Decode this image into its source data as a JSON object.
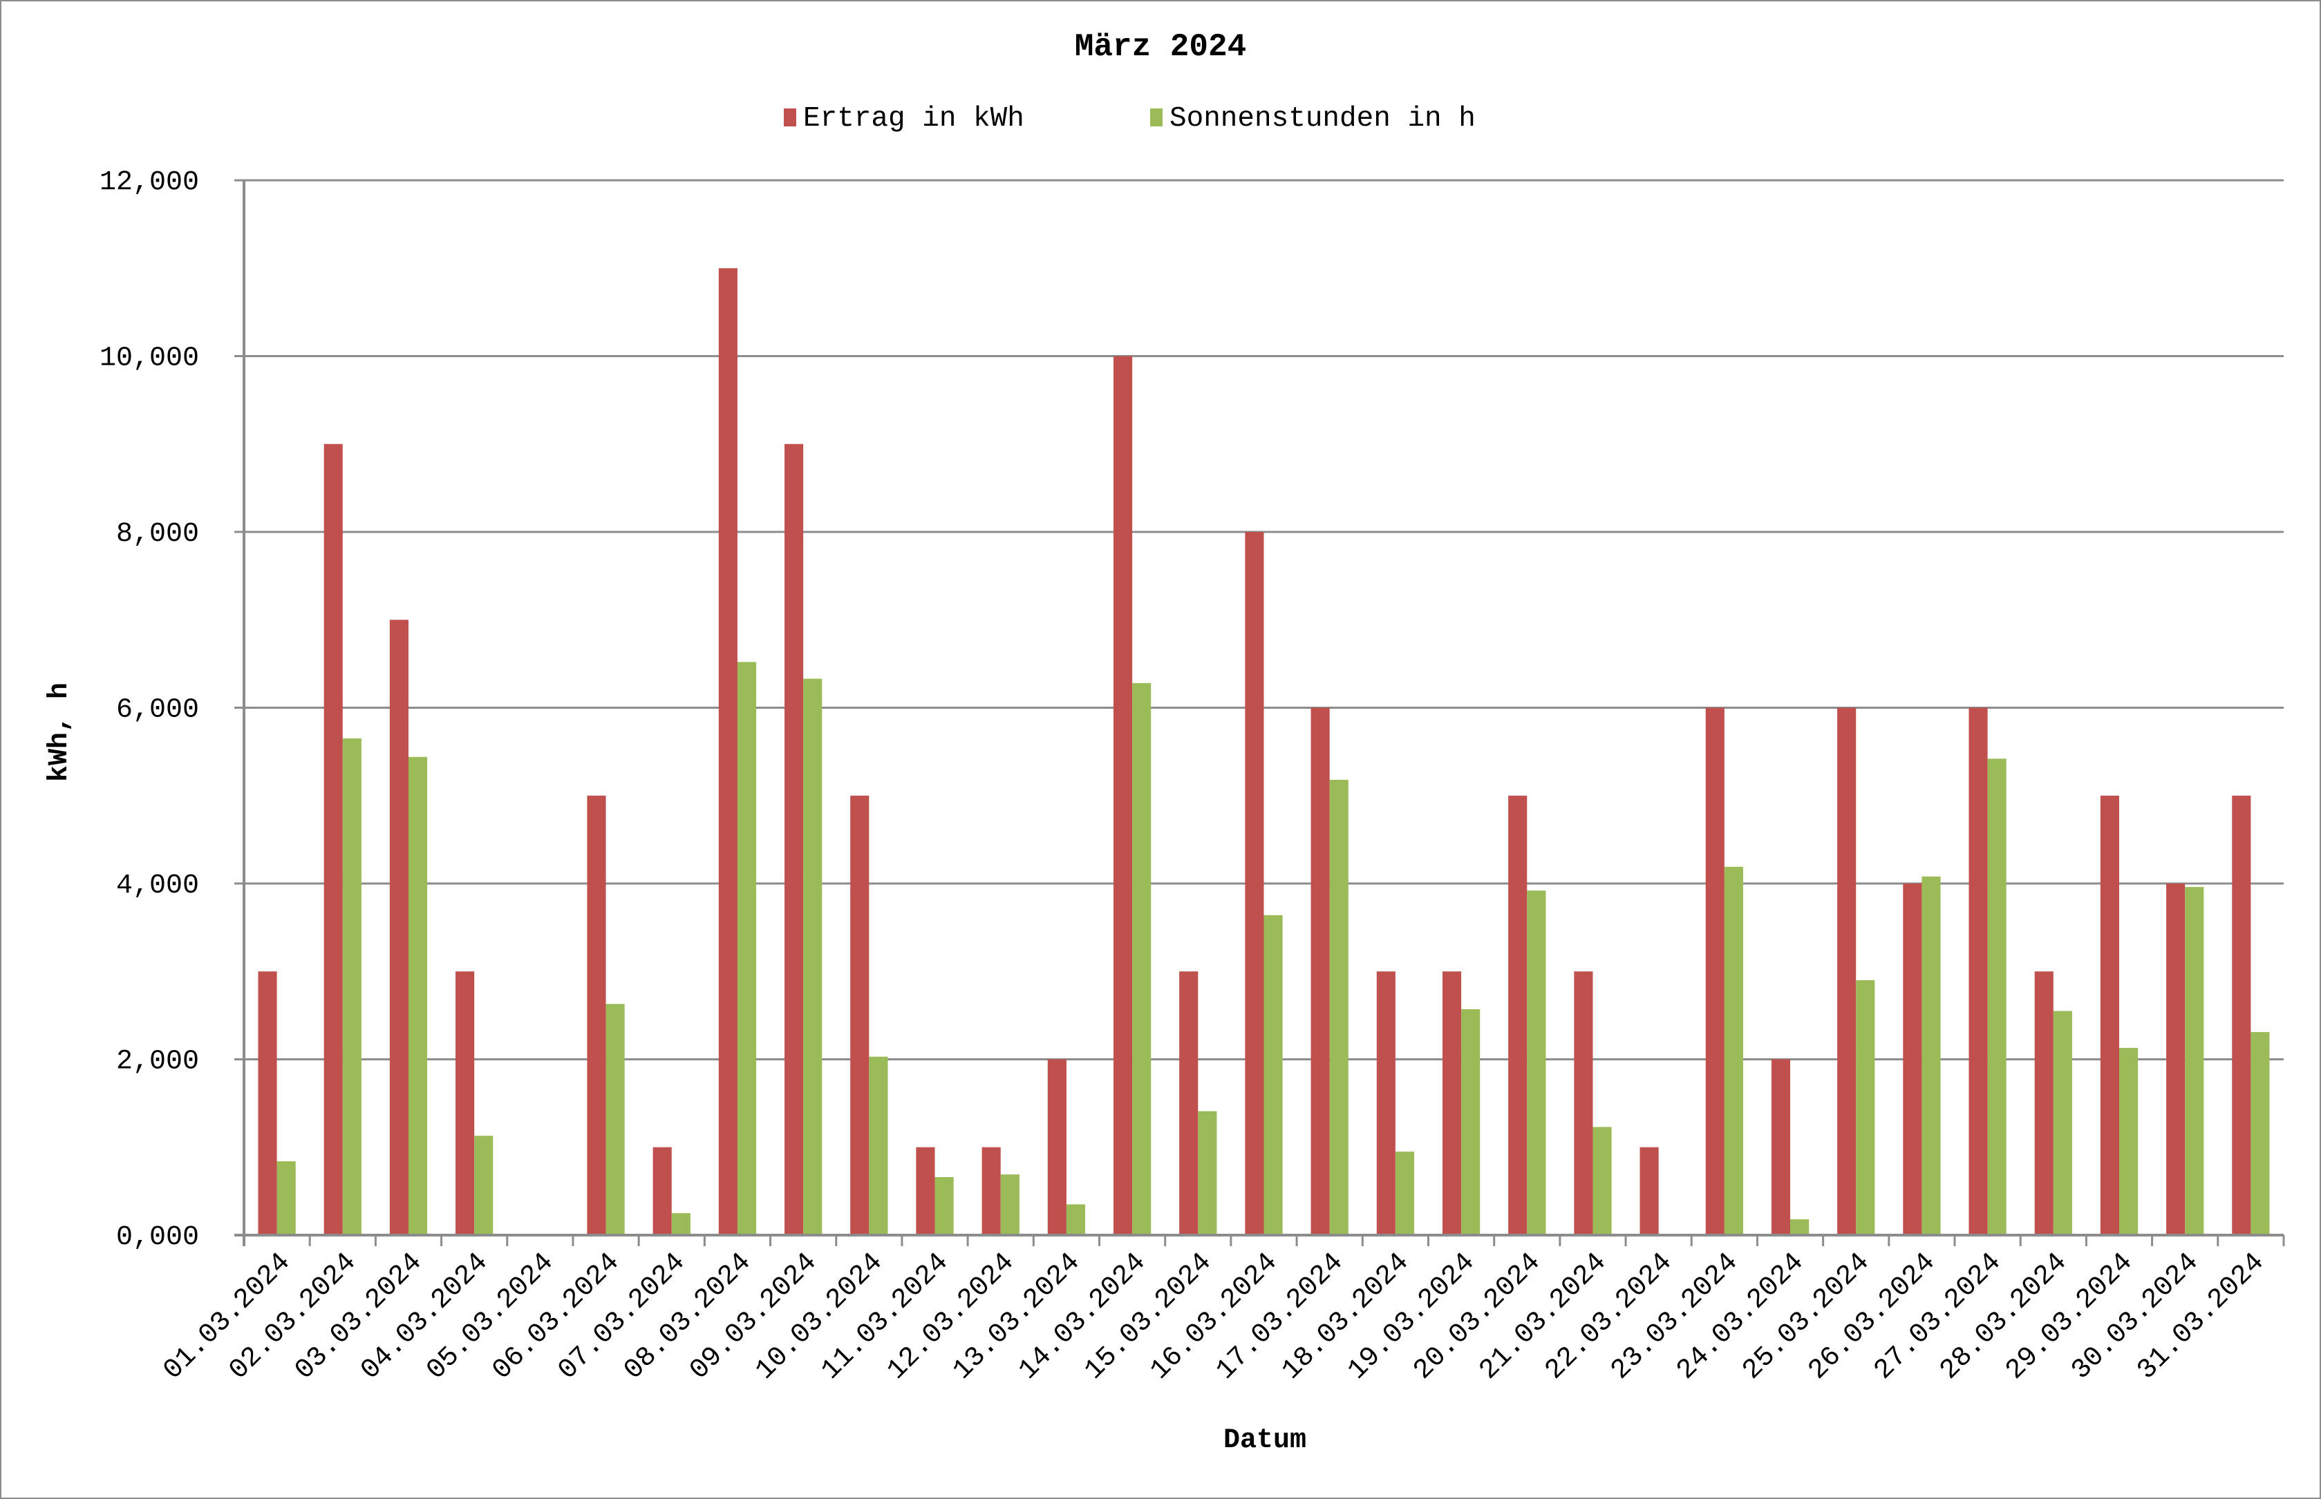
{
  "chart_data": {
    "type": "bar",
    "title": "März 2024",
    "xlabel": "Datum",
    "ylabel": "kWh, h",
    "ylim": [
      0,
      12
    ],
    "yticks": [
      "0,000",
      "2,000",
      "4,000",
      "6,000",
      "8,000",
      "10,000",
      "12,000"
    ],
    "grid": true,
    "legend_position": "top",
    "categories": [
      "01.03.2024",
      "02.03.2024",
      "03.03.2024",
      "04.03.2024",
      "05.03.2024",
      "06.03.2024",
      "07.03.2024",
      "08.03.2024",
      "09.03.2024",
      "10.03.2024",
      "11.03.2024",
      "12.03.2024",
      "13.03.2024",
      "14.03.2024",
      "15.03.2024",
      "16.03.2024",
      "17.03.2024",
      "18.03.2024",
      "19.03.2024",
      "20.03.2024",
      "21.03.2024",
      "22.03.2024",
      "23.03.2024",
      "24.03.2024",
      "25.03.2024",
      "26.03.2024",
      "27.03.2024",
      "28.03.2024",
      "29.03.2024",
      "30.03.2024",
      "31.03.2024"
    ],
    "series": [
      {
        "name": "Ertrag in kWh",
        "color": "#c0504d",
        "values": [
          3,
          9,
          7,
          3,
          0,
          5,
          1,
          11,
          9,
          5,
          1,
          1,
          2,
          10,
          3,
          8,
          6,
          3,
          3,
          5,
          3,
          1,
          6,
          2,
          6,
          4,
          6,
          3,
          5,
          4,
          5
        ]
      },
      {
        "name": "Sonnenstunden in h",
        "color": "#9bbb59",
        "values": [
          0.84,
          5.65,
          5.44,
          1.13,
          0,
          2.63,
          0.25,
          6.52,
          6.33,
          2.03,
          0.66,
          0.69,
          0.35,
          6.28,
          1.41,
          3.64,
          5.18,
          0.95,
          2.57,
          3.92,
          1.23,
          0,
          4.19,
          0.18,
          2.9,
          4.08,
          5.42,
          2.55,
          2.13,
          3.96,
          2.31
        ]
      }
    ]
  },
  "colors": {
    "gridline": "#8c8c8c",
    "border": "#8c8c8c"
  }
}
